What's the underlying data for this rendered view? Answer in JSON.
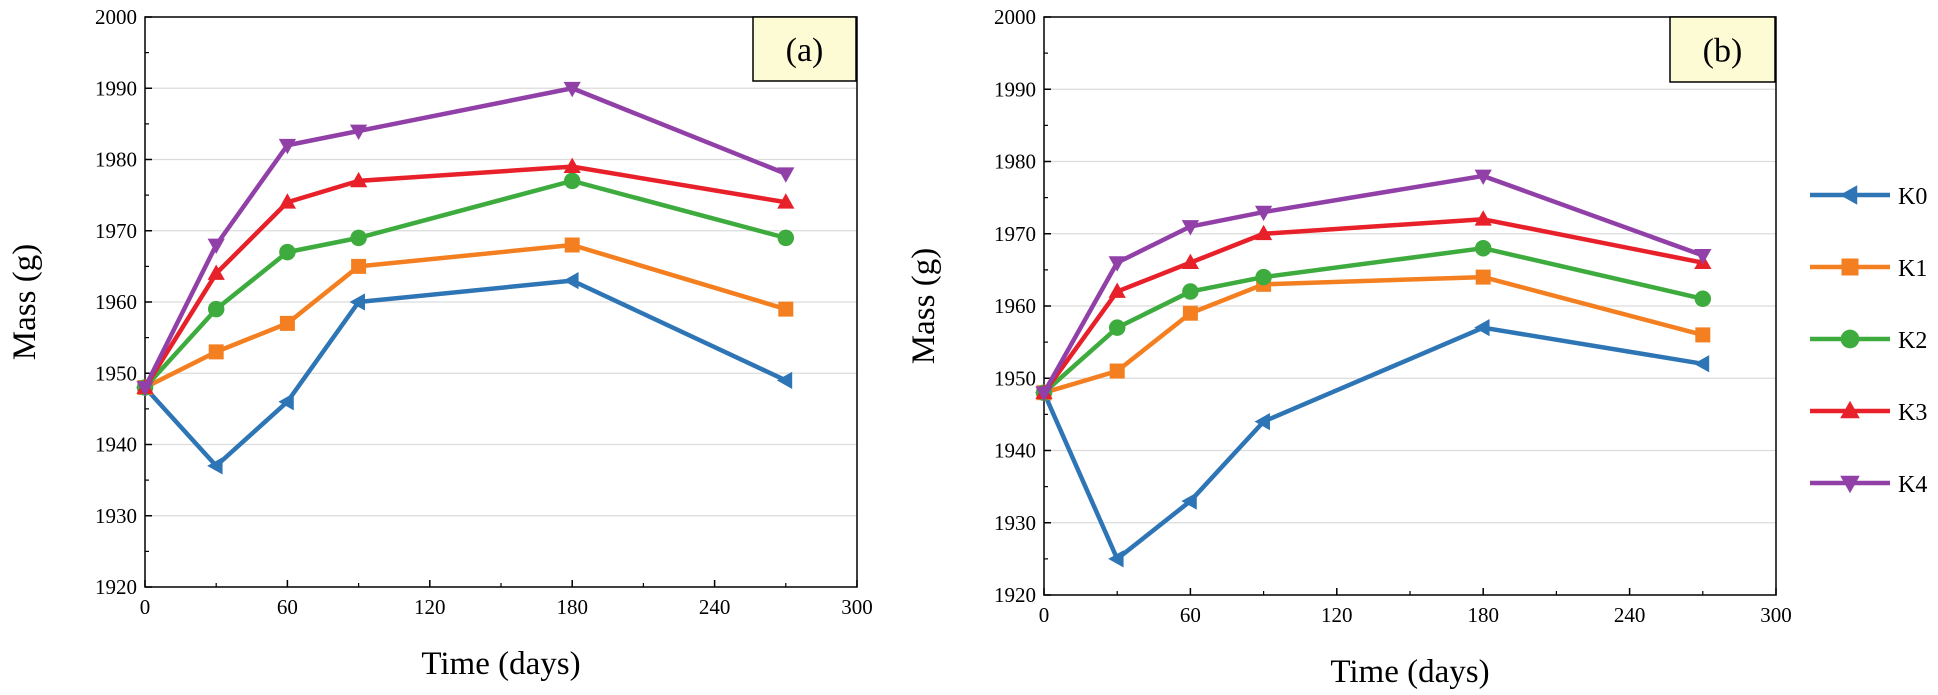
{
  "colors": {
    "K0": "#2e75b6",
    "K1": "#f47f20",
    "K2": "#3dab3d",
    "K3": "#e8202a",
    "K4": "#9140a8",
    "label_box": "#fdfbd3",
    "grid": "#dcdcdc"
  },
  "legend": [
    {
      "name": "K0",
      "marker": "triangle-left"
    },
    {
      "name": "K1",
      "marker": "square"
    },
    {
      "name": "K2",
      "marker": "circle"
    },
    {
      "name": "K3",
      "marker": "triangle-up"
    },
    {
      "name": "K4",
      "marker": "triangle-down"
    }
  ],
  "chart_data": [
    {
      "type": "line",
      "label": "(a)",
      "xlabel": "Time (days)",
      "ylabel": "Mass (g)",
      "xlim": [
        0,
        300
      ],
      "ylim": [
        1920,
        2000
      ],
      "xticks": [
        0,
        60,
        120,
        180,
        240,
        300
      ],
      "yticks": [
        1920,
        1930,
        1940,
        1950,
        1960,
        1970,
        1980,
        1990,
        2000
      ],
      "grid": true,
      "x": [
        0,
        30,
        60,
        90,
        180,
        270
      ],
      "series": [
        {
          "name": "K0",
          "values": [
            1948,
            1937,
            1946,
            1960,
            1963,
            1949
          ]
        },
        {
          "name": "K1",
          "values": [
            1948,
            1953,
            1957,
            1965,
            1968,
            1959
          ]
        },
        {
          "name": "K2",
          "values": [
            1948,
            1959,
            1967,
            1969,
            1977,
            1969
          ]
        },
        {
          "name": "K3",
          "values": [
            1948,
            1964,
            1974,
            1977,
            1979,
            1974
          ]
        },
        {
          "name": "K4",
          "values": [
            1948,
            1968,
            1982,
            1984,
            1990,
            1978
          ]
        }
      ]
    },
    {
      "type": "line",
      "label": "(b)",
      "xlabel": "Time (days)",
      "ylabel": "Mass (g)",
      "xlim": [
        0,
        300
      ],
      "ylim": [
        1920,
        2000
      ],
      "xticks": [
        0,
        60,
        120,
        180,
        240,
        300
      ],
      "yticks": [
        1920,
        1930,
        1940,
        1950,
        1960,
        1970,
        1980,
        1990,
        2000
      ],
      "grid": true,
      "x": [
        0,
        30,
        60,
        90,
        180,
        270
      ],
      "series": [
        {
          "name": "K0",
          "values": [
            1948,
            1925,
            1933,
            1944,
            1957,
            1952
          ]
        },
        {
          "name": "K1",
          "values": [
            1948,
            1951,
            1959,
            1963,
            1964,
            1956
          ]
        },
        {
          "name": "K2",
          "values": [
            1948,
            1957,
            1962,
            1964,
            1968,
            1961
          ]
        },
        {
          "name": "K3",
          "values": [
            1948,
            1962,
            1966,
            1970,
            1972,
            1966
          ]
        },
        {
          "name": "K4",
          "values": [
            1948,
            1966,
            1971,
            1973,
            1978,
            1967
          ]
        }
      ]
    }
  ]
}
